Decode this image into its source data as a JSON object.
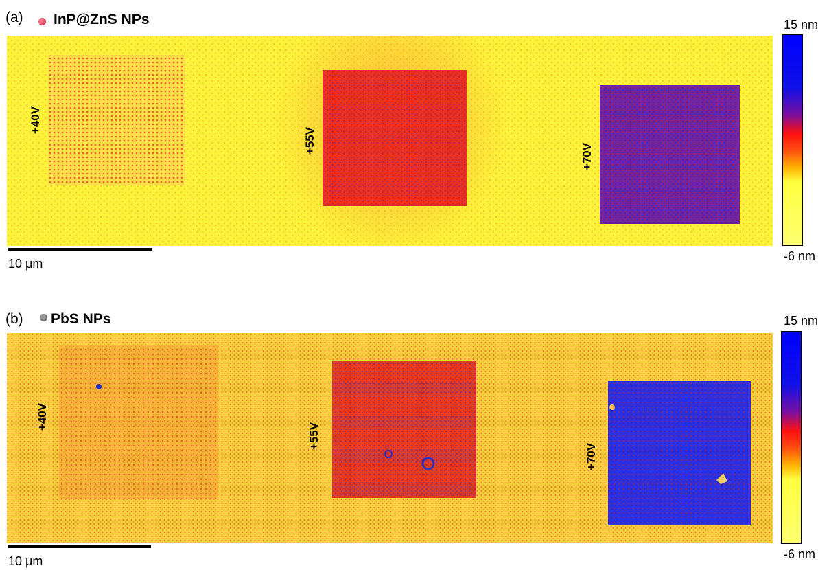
{
  "panels": [
    {
      "letter": "(a)",
      "np_label": "InP@ZnS NPs",
      "np_dot_color": "#e0405a",
      "squares": [
        "+40V",
        "+55V",
        "+70V"
      ],
      "scale_label": "10 μm",
      "colorbar": {
        "max": "15 nm",
        "min": "-6 nm"
      }
    },
    {
      "letter": "(b)",
      "np_label": "PbS NPs",
      "np_dot_color": "#555555",
      "squares": [
        "+40V",
        "+55V",
        "+70V"
      ],
      "scale_label": "10 μm",
      "colorbar": {
        "max": "15 nm",
        "min": "-6 nm"
      }
    }
  ],
  "colors": {
    "background_yellow": "#fff23a",
    "orange": "#f7a22a",
    "red": "#e8281e",
    "blue": "#1f2ee8",
    "colormap": [
      "#0000ff",
      "#7a10a0",
      "#ff1010",
      "#ff9000",
      "#ffff50"
    ]
  }
}
